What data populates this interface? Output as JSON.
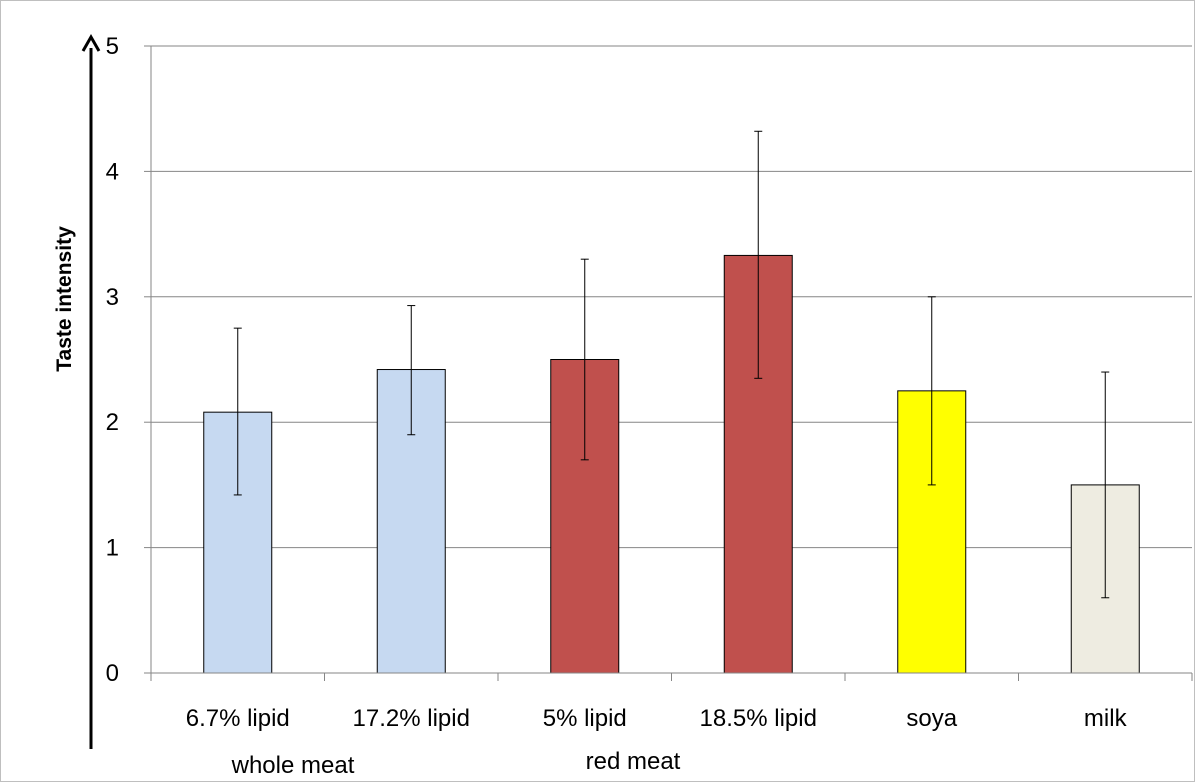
{
  "chart_data": {
    "type": "bar",
    "title": "",
    "xlabel": "",
    "ylabel": "Taste intensity",
    "ylim": [
      0,
      5
    ],
    "yticks": [
      0,
      1,
      2,
      3,
      4,
      5
    ],
    "grid": true,
    "categories": [
      "6.7% lipid",
      "17.2% lipid",
      "5% lipid",
      "18.5% lipid",
      "soya",
      "milk"
    ],
    "values": [
      2.08,
      2.42,
      2.5,
      3.33,
      2.25,
      1.5
    ],
    "error_low": [
      1.42,
      1.9,
      1.7,
      2.35,
      1.5,
      0.6
    ],
    "error_high": [
      2.75,
      2.93,
      3.3,
      4.32,
      3.0,
      2.4
    ],
    "colors": [
      "#c6d9f1",
      "#c6d9f1",
      "#c0504d",
      "#c0504d",
      "#ffff00",
      "#eeece1"
    ],
    "groups": [
      {
        "label": "whole meat",
        "categories": [
          "6.7% lipid",
          "17.2% lipid"
        ]
      },
      {
        "label": "red meat",
        "categories": [
          "5% lipid",
          "18.5% lipid"
        ]
      }
    ]
  }
}
